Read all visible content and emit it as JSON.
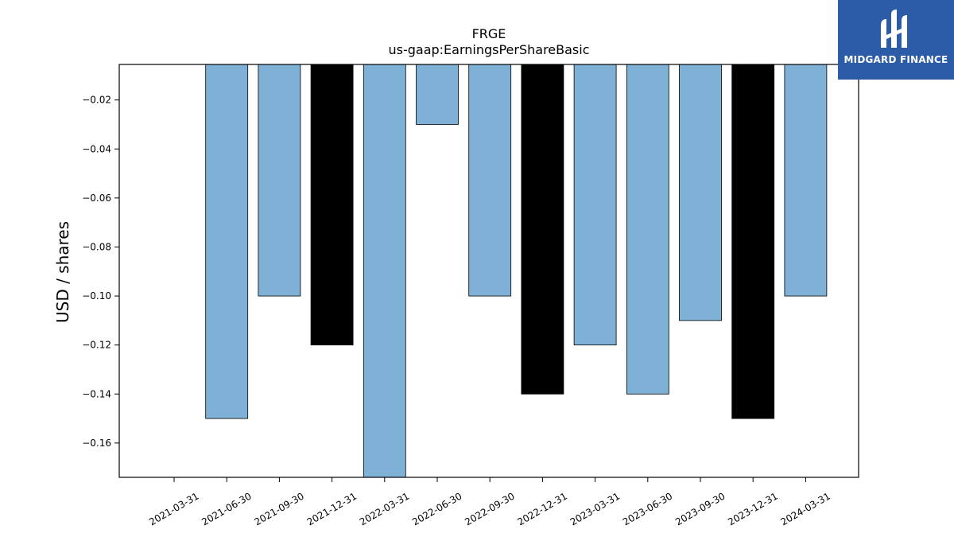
{
  "brand": {
    "name": "MIDGARD FINANCE",
    "logo_icon": "midgard-logo-icon",
    "background": "#2c5ba8"
  },
  "chart_data": {
    "type": "bar",
    "title": "FRGE",
    "subtitle": "us-gaap:EarningsPerShareBasic",
    "xlabel": "",
    "ylabel": "USD / shares",
    "categories": [
      "2021-03-31",
      "2021-06-30",
      "2021-09-30",
      "2021-12-31",
      "2022-03-31",
      "2022-06-30",
      "2022-09-30",
      "2022-12-31",
      "2023-03-31",
      "2023-06-30",
      "2023-09-30",
      "2023-12-31",
      "2024-03-31"
    ],
    "values": [
      null,
      -0.15,
      -0.1,
      -0.12,
      -0.18,
      -0.03,
      -0.1,
      -0.14,
      -0.12,
      -0.14,
      -0.11,
      -0.15,
      -0.1
    ],
    "highlight": [
      false,
      false,
      false,
      true,
      false,
      false,
      false,
      true,
      false,
      false,
      false,
      true,
      false
    ],
    "ylim": [
      -0.174,
      -0.0055
    ],
    "yticks": [
      -0.02,
      -0.04,
      -0.06,
      -0.08,
      -0.1,
      -0.12,
      -0.14,
      -0.16
    ],
    "ytick_labels": [
      "−0.02",
      "−0.04",
      "−0.06",
      "−0.08",
      "−0.10",
      "−0.12",
      "−0.14",
      "−0.16"
    ],
    "colors": {
      "default": "#7fb0d5",
      "highlight": "#000000",
      "edge": "#000000"
    },
    "grid": false,
    "legend": "none"
  }
}
